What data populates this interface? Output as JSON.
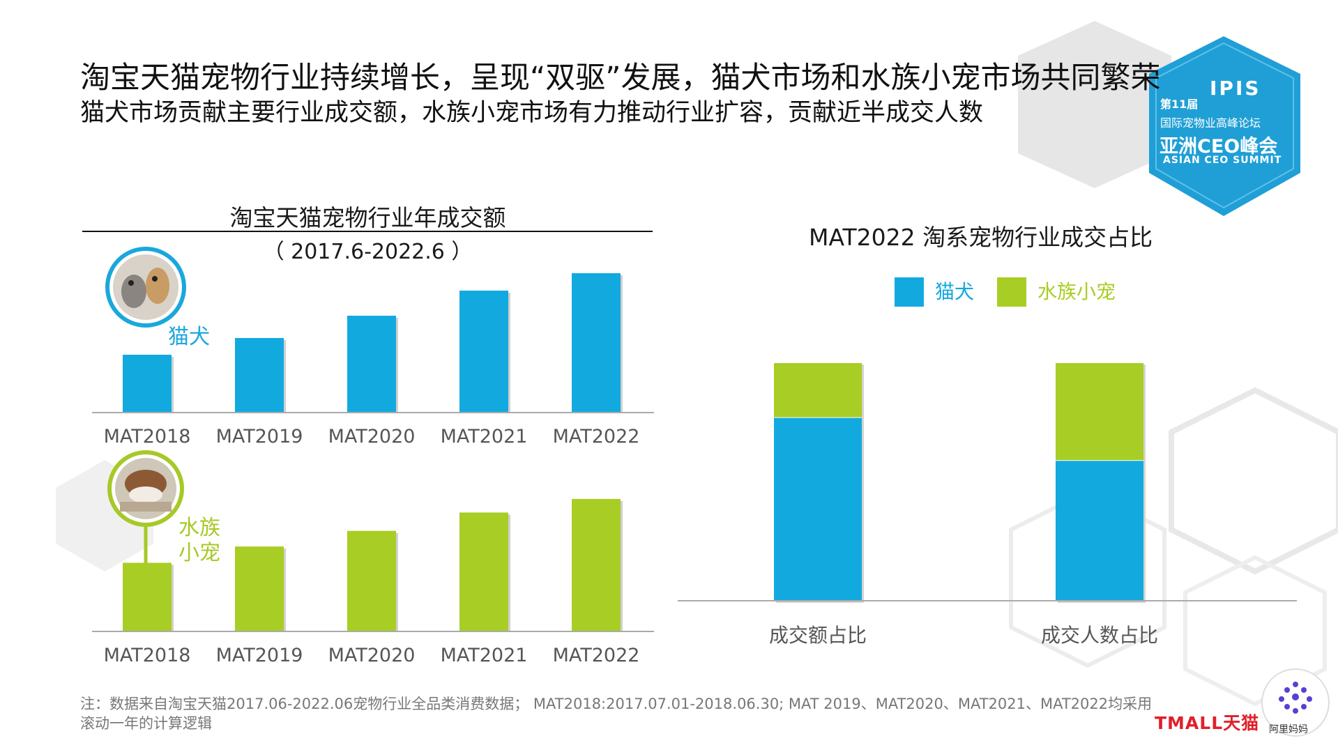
{
  "headline": "淘宝天猫宠物行业持续增长，呈现“双驱”发展，猫犬市场和水族小宠市场共同繁荣",
  "subheadline": "猫犬市场贡献主要行业成交额，水族小宠市场有力推动行业扩容，贡献近半成交人数",
  "badge": {
    "edition": "第11届",
    "brand": "IPIS",
    "forum": "国际宠物业高峰论坛",
    "title": "亚洲CEO峰会",
    "title_en": "ASIAN CEO SUMMIT"
  },
  "colors": {
    "cat_dog": "#12a9df",
    "aquatic_small": "#a8cd24",
    "badge": "#1f9fd6",
    "axis": "#aaaaaa"
  },
  "chart_data": [
    {
      "type": "bar",
      "title": "淘宝天猫宠物行业年成交额",
      "period": "（ 2017.6-2022.6 ）",
      "categories": [
        "MAT2018",
        "MAT2019",
        "MAT2020",
        "MAT2021",
        "MAT2022"
      ],
      "series": [
        {
          "name": "猫犬",
          "values": [
            83,
            107,
            139,
            175,
            200
          ]
        }
      ],
      "ylim": [
        0,
        200
      ],
      "grid": false
    },
    {
      "type": "bar",
      "categories": [
        "MAT2018",
        "MAT2019",
        "MAT2020",
        "MAT2021",
        "MAT2022"
      ],
      "series": [
        {
          "name": "水族小宠",
          "values": [
            101,
            125,
            148,
            175,
            195
          ]
        }
      ],
      "ylim": [
        0,
        200
      ],
      "grid": false
    },
    {
      "type": "bar",
      "stacked": true,
      "percent": true,
      "title": "MAT2022 淘系宠物行业成交占比",
      "categories": [
        "成交额占比",
        "成交人数占比"
      ],
      "series": [
        {
          "name": "猫犬",
          "values": [
            77,
            59
          ]
        },
        {
          "name": "水族小宠",
          "values": [
            23,
            41
          ]
        }
      ],
      "ylim": [
        0,
        100
      ],
      "legend": "top",
      "grid": false
    }
  ],
  "legend_labels": {
    "cat_dog": "猫犬",
    "aquatic_small": "水族小宠"
  },
  "series_labels": {
    "cat_dog": "猫犬",
    "aquatic_line1": "水族",
    "aquatic_line2": "小宠"
  },
  "footnote": "注：数据来自淘宝天猫2017.06-2022.06宠物行业全品类消费数据；  MAT2018:2017.07.01-2018.06.30; MAT 2019、MAT2020、MAT2021、MAT2022均采用滚动一年的计算逻辑",
  "logos": {
    "tmall": "TMALL天猫",
    "alimama": "阿里妈妈"
  },
  "icons": {
    "cat_dog_photo": "cat-dog-photo-icon",
    "hamster_photo": "hamster-photo-icon"
  }
}
